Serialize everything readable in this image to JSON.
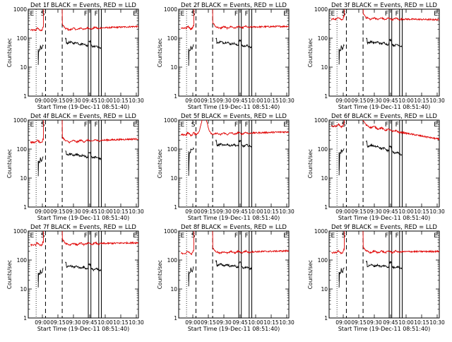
{
  "chart_data": {
    "type": "line",
    "grid": false,
    "y_scale": "log",
    "ylim": [
      1,
      1000
    ],
    "y_ticks": [
      1,
      10,
      100,
      1000
    ],
    "y_tick_labels": [
      "1",
      "10",
      "100",
      "1000"
    ],
    "x_tick_labels": [
      "09:00",
      "09:15",
      "09:30",
      "09:45",
      "10:00",
      "10:15",
      "10:30"
    ],
    "xlabel": "Start Time (19-Dec-11 08:51:40)",
    "ylabel": "Counts/sec",
    "series_colors": {
      "events": "#000000",
      "lld": "#e00000"
    },
    "marker_labels": {
      "E": "E",
      "S": "S",
      "F": "F"
    },
    "panels": [
      {
        "title": "Det 1f BLACK = Events, RED = LLD",
        "lld_level": 200,
        "lld_end": 260,
        "events_level": 70,
        "events_end": 48,
        "spike": false
      },
      {
        "title": "Det 2f BLACK = Events, RED = LLD",
        "lld_level": 230,
        "lld_end": 260,
        "events_level": 72,
        "events_end": 50,
        "spike": false
      },
      {
        "title": "Det 3f BLACK = Events, RED = LLD",
        "lld_level": 480,
        "lld_end": 430,
        "events_level": 72,
        "events_end": 55,
        "spike": false
      },
      {
        "title": "Det 4f BLACK = Events, RED = LLD",
        "lld_level": 180,
        "lld_end": 230,
        "events_level": 65,
        "events_end": 48,
        "spike": false
      },
      {
        "title": "Det 5f BLACK = Events, RED = LLD",
        "lld_level": 330,
        "lld_end": 400,
        "events_level": 140,
        "events_end": 130,
        "spike": true
      },
      {
        "title": "Det 6f BLACK = Events, RED = LLD",
        "lld_level": 650,
        "lld_end": 200,
        "events_level": 130,
        "events_end": 65,
        "spike": false
      },
      {
        "title": "Det 7f BLACK = Events, RED = LLD",
        "lld_level": 350,
        "lld_end": 400,
        "events_level": 60,
        "events_end": 45,
        "spike": false
      },
      {
        "title": "Det 8f BLACK = Events, RED = LLD",
        "lld_level": 180,
        "lld_end": 210,
        "events_level": 68,
        "events_end": 52,
        "spike": false
      },
      {
        "title": "Det 9f BLACK = Events, RED = LLD",
        "lld_level": 190,
        "lld_end": 200,
        "events_level": 65,
        "events_end": 55,
        "spike": false
      }
    ]
  }
}
